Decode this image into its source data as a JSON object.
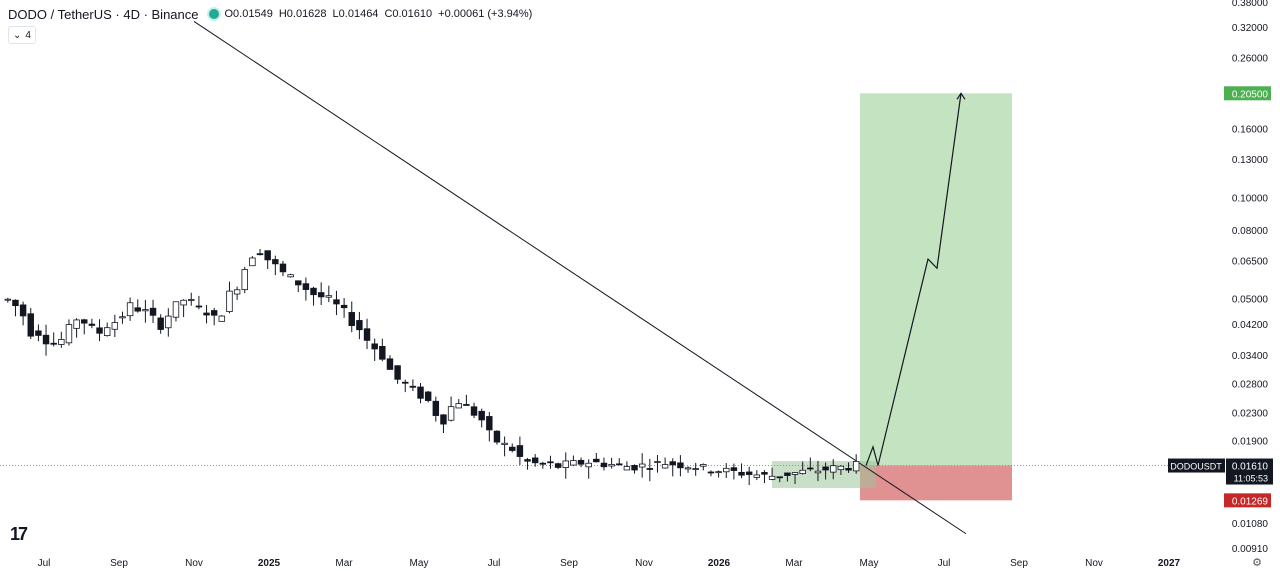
{
  "header": {
    "symbol": "DODO / TetherUS · 4D · Binance",
    "open": "O0.01549",
    "high": "H0.01628",
    "low": "L0.01464",
    "close": "C0.01610",
    "change": "+0.00061 (+3.94%)",
    "indicator_count": "4",
    "status_color": "#22ab94"
  },
  "chart_data": {
    "type": "candlestick",
    "symbol": "DODOUSDT",
    "scale": "log",
    "ylim": [
      0.0091,
      0.38
    ],
    "y_ticks": [
      "0.38000",
      "0.32000",
      "0.26000",
      "0.20500",
      "0.16000",
      "0.13000",
      "0.10000",
      "0.08000",
      "0.06500",
      "0.05000",
      "0.04200",
      "0.03400",
      "0.02800",
      "0.02300",
      "0.01900",
      "0.01610",
      "0.01269",
      "0.01080",
      "0.00910"
    ],
    "x_ticks": [
      "Jul",
      "Sep",
      "Nov",
      "2025",
      "Mar",
      "May",
      "Jul",
      "Sep",
      "Nov",
      "2026",
      "Mar",
      "May",
      "Jul",
      "Sep",
      "Nov",
      "2027"
    ],
    "current_price": "0.01610",
    "countdown": "11:05:53",
    "target_price": "0.20500",
    "stop_price": "0.01269",
    "entry_price": 0.0161,
    "path_points": [
      [
        0.0161,
        0
      ],
      [
        0.0183,
        1
      ],
      [
        0.0161,
        2
      ],
      [
        0.066,
        3
      ],
      [
        0.062,
        4
      ],
      [
        0.205,
        5
      ]
    ],
    "trendline": [
      [
        0.33,
        "2024-11"
      ],
      [
        0.0101,
        "2026-06"
      ]
    ],
    "price_path": [
      0.05,
      0.048,
      0.045,
      0.04,
      0.04,
      0.038,
      0.037,
      0.038,
      0.041,
      0.044,
      0.043,
      0.041,
      0.04,
      0.042,
      0.043,
      0.045,
      0.048,
      0.047,
      0.046,
      0.044,
      0.042,
      0.045,
      0.048,
      0.05,
      0.049,
      0.047,
      0.046,
      0.044,
      0.046,
      0.052,
      0.055,
      0.062,
      0.068,
      0.07,
      0.066,
      0.063,
      0.06,
      0.058,
      0.056,
      0.054,
      0.052,
      0.051,
      0.05,
      0.048,
      0.046,
      0.043,
      0.041,
      0.038,
      0.036,
      0.034,
      0.031,
      0.029,
      0.028,
      0.027,
      0.026,
      0.025,
      0.023,
      0.022,
      0.024,
      0.025,
      0.024,
      0.023,
      0.022,
      0.02,
      0.019,
      0.0185,
      0.018,
      0.017,
      0.0165,
      0.0163,
      0.0162,
      0.0162,
      0.016,
      0.0162,
      0.0163,
      0.0164,
      0.0165,
      0.0164,
      0.0163,
      0.0162,
      0.0161,
      0.016,
      0.016,
      0.0161,
      0.0162,
      0.0163,
      0.0164,
      0.0163,
      0.0162,
      0.0161,
      0.016,
      0.0158,
      0.0157,
      0.0156,
      0.0155,
      0.0154,
      0.0153,
      0.0152,
      0.0151,
      0.015,
      0.015,
      0.0151,
      0.0152,
      0.0153,
      0.0154,
      0.0155,
      0.0156,
      0.0157,
      0.0158,
      0.0159,
      0.016,
      0.0161
    ],
    "up_color": "#ffffff",
    "down_color": "#131722",
    "target_zone_color": "#c4e4c1",
    "stop_zone_color": "#e09191",
    "last_price_label_color": "#131722",
    "target_label_color": "#4caf50",
    "stop_label_color": "#c62828"
  }
}
